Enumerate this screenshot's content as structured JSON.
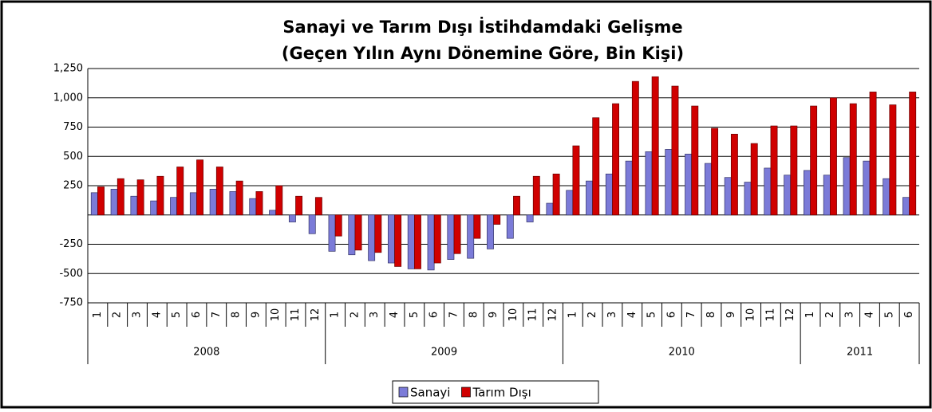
{
  "chart_data": {
    "type": "bar",
    "title": "Sanayi ve Tarım Dışı İstihdamdaki Gelişme",
    "subtitle": "(Geçen Yılın Aynı Dönemine Göre, Bin Kişi)",
    "categories": [
      "1",
      "2",
      "3",
      "4",
      "5",
      "6",
      "7",
      "8",
      "9",
      "10",
      "11",
      "12",
      "1",
      "2",
      "3",
      "4",
      "5",
      "6",
      "7",
      "8",
      "9",
      "10",
      "11",
      "12",
      "1",
      "2",
      "3",
      "4",
      "5",
      "6",
      "7",
      "8",
      "9",
      "10",
      "11",
      "12",
      "1",
      "2",
      "3",
      "4",
      "5",
      "6"
    ],
    "category_groups": [
      {
        "label": "2008",
        "span": 12
      },
      {
        "label": "2009",
        "span": 12
      },
      {
        "label": "2010",
        "span": 12
      },
      {
        "label": "2011",
        "span": 6
      }
    ],
    "series": [
      {
        "name": "Sanayi",
        "color": "#7b7bd8",
        "values": [
          190,
          220,
          160,
          120,
          150,
          190,
          220,
          200,
          140,
          40,
          -60,
          -160,
          -310,
          -340,
          -390,
          -410,
          -460,
          -470,
          -380,
          -370,
          -290,
          -200,
          -60,
          100,
          210,
          290,
          350,
          460,
          540,
          560,
          520,
          440,
          320,
          280,
          400,
          340,
          380,
          340,
          490,
          460,
          310,
          150
        ]
      },
      {
        "name": "Tarım Dışı",
        "color": "#d00000",
        "values": [
          240,
          310,
          300,
          330,
          410,
          470,
          410,
          290,
          200,
          250,
          160,
          150,
          -180,
          -300,
          -320,
          -440,
          -460,
          -410,
          -330,
          -200,
          -80,
          160,
          330,
          350,
          590,
          830,
          950,
          1140,
          1180,
          1100,
          930,
          740,
          690,
          610,
          760,
          760,
          930,
          1000,
          950,
          1050,
          940,
          1050
        ]
      }
    ],
    "ylim": [
      -750,
      1250
    ],
    "yticks": [
      {
        "value": 1250,
        "label": "1,250"
      },
      {
        "value": 1000,
        "label": "1,000"
      },
      750,
      500,
      250,
      -250,
      -500,
      -750
    ],
    "grid": true,
    "legend": "bottom"
  }
}
